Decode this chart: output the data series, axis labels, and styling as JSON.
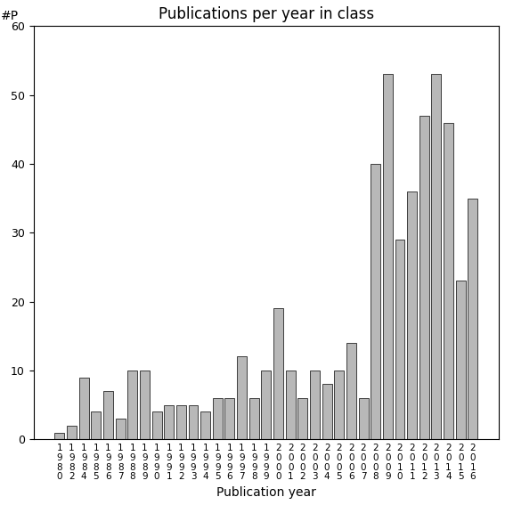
{
  "years": [
    "1980",
    "1982",
    "1984",
    "1985",
    "1986",
    "1987",
    "1988",
    "1989",
    "1990",
    "1991",
    "1992",
    "1993",
    "1994",
    "1995",
    "1996",
    "1997",
    "1998",
    "1999",
    "2000",
    "2001",
    "2002",
    "2003",
    "2004",
    "2005",
    "2006",
    "2007",
    "2008",
    "2009",
    "2010",
    "2011",
    "2012",
    "2013",
    "2014",
    "2015",
    "2016"
  ],
  "values": [
    1,
    2,
    9,
    4,
    7,
    3,
    10,
    10,
    4,
    5,
    5,
    5,
    4,
    6,
    6,
    12,
    6,
    10,
    19,
    10,
    6,
    10,
    8,
    10,
    14,
    6,
    40,
    53,
    29,
    36,
    47,
    53,
    46,
    23,
    35
  ],
  "bar_color": "#b8b8b8",
  "bar_edge_color": "#000000",
  "title": "Publications per year in class",
  "xlabel": "Publication year",
  "ylabel": "#P",
  "ylim": [
    0,
    60
  ],
  "yticks": [
    0,
    10,
    20,
    30,
    40,
    50,
    60
  ],
  "bg_color": "#ffffff",
  "title_fontsize": 12,
  "label_fontsize": 10,
  "tick_fontsize": 9
}
